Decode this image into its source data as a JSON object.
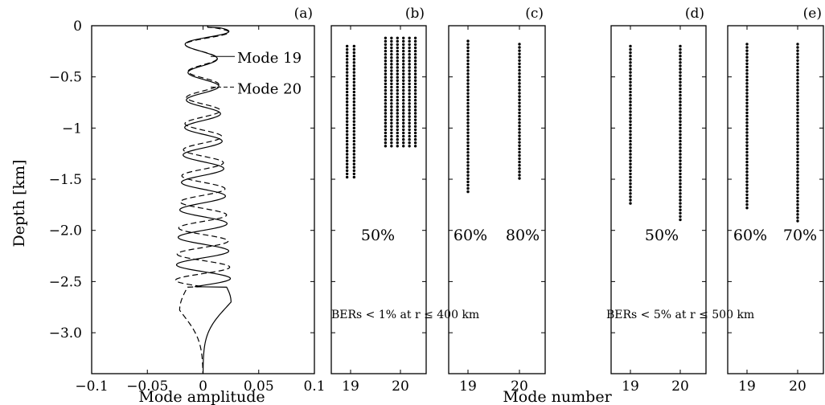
{
  "chart_data": [
    {
      "type": "line",
      "panel_label": "(a)",
      "xlabel": "Mode amplitude",
      "ylabel": "Depth [km]",
      "xlim": [
        -0.1,
        0.1
      ],
      "ylim": [
        -3.4,
        0
      ],
      "x_ticks": [
        "−0.1",
        "−0.05",
        "0",
        "0.05",
        "0.1"
      ],
      "y_ticks": [
        "0",
        "−0.5",
        "−1",
        "−1.5",
        "−2.0",
        "−2.5",
        "−3.0"
      ],
      "series": [
        {
          "name": "Mode 19",
          "style": "solid",
          "peak_amplitude": 0.035,
          "peak_depth": -2.7,
          "zero_crossings": 18
        },
        {
          "name": "Mode 20",
          "style": "dashed",
          "peak_amplitude": -0.035,
          "peak_depth": -2.75,
          "zero_crossings": 19
        }
      ],
      "annotations": [
        "Mode 19",
        "Mode 20"
      ]
    },
    {
      "type": "scatter",
      "panel_label": "(b)",
      "x_ticks": [
        "19",
        "20"
      ],
      "annotation": "50%",
      "series": [
        {
          "name": "19",
          "columns": [
            18.93,
            19.07
          ],
          "depth_range": [
            -0.2,
            -1.5
          ]
        },
        {
          "name": "20",
          "columns": [
            19.7,
            19.82,
            19.94,
            20.06,
            20.18,
            20.3
          ],
          "depth_range": [
            -0.12,
            -1.2
          ]
        }
      ]
    },
    {
      "type": "scatter",
      "panel_label": "(c)",
      "x_ticks": [
        "19",
        "20"
      ],
      "annotations": [
        "60%",
        "80%"
      ],
      "series": [
        {
          "name": "19",
          "columns": [
            19
          ],
          "depth_range": [
            -0.15,
            -1.65
          ]
        },
        {
          "name": "20",
          "columns": [
            20
          ],
          "depth_range": [
            -0.18,
            -1.52
          ]
        }
      ]
    },
    {
      "type": "scatter",
      "panel_label": "(d)",
      "x_ticks": [
        "19",
        "20"
      ],
      "annotation": "50%",
      "series": [
        {
          "name": "19",
          "columns": [
            19
          ],
          "depth_range": [
            -0.2,
            -1.75
          ]
        },
        {
          "name": "20",
          "columns": [
            20
          ],
          "depth_range": [
            -0.2,
            -1.9
          ]
        }
      ]
    },
    {
      "type": "scatter",
      "panel_label": "(e)",
      "x_ticks": [
        "19",
        "20"
      ],
      "annotations": [
        "60%",
        "70%"
      ],
      "series": [
        {
          "name": "19",
          "columns": [
            19
          ],
          "depth_range": [
            -0.18,
            -1.78
          ]
        },
        {
          "name": "20",
          "columns": [
            20
          ],
          "depth_range": [
            -0.18,
            -1.93
          ]
        }
      ]
    }
  ],
  "ber_notes": [
    "BERs < 1% at r ≤ 400 km",
    "BERs < 5% at r ≤ 500 km"
  ],
  "shared_xlabel": "Mode number"
}
